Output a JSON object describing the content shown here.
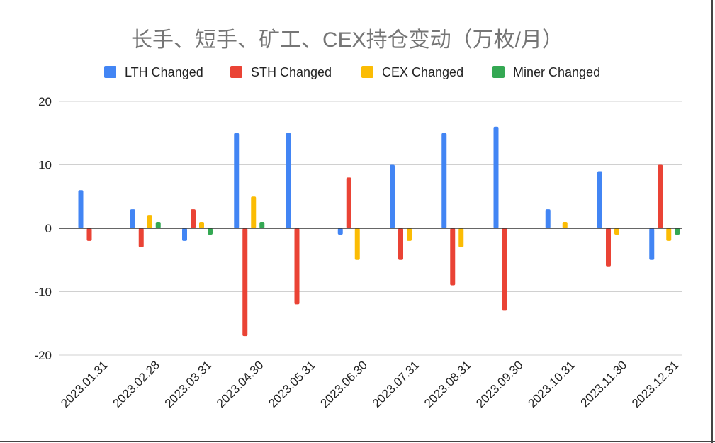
{
  "chart_data": {
    "type": "bar",
    "title": "长手、短手、矿工、CEX持仓变动（万枚/月）",
    "xlabel": "",
    "ylabel": "",
    "ylim": [
      -20,
      20
    ],
    "yticks": [
      20,
      10,
      0,
      -10,
      -20
    ],
    "grid": true,
    "legend_position": "top",
    "categories": [
      "2023.01.31",
      "2023.02.28",
      "2023.03.31",
      "2023.04.30",
      "2023.05.31",
      "2023.06.30",
      "2023.07.31",
      "2023.08.31",
      "2023.09.30",
      "2023.10.31",
      "2023.11.30",
      "2023.12.31"
    ],
    "series": [
      {
        "name": "LTH Changed",
        "color": "#4285F4",
        "values": [
          6,
          3,
          -2,
          15,
          15,
          -1,
          10,
          15,
          16,
          3,
          9,
          -5
        ]
      },
      {
        "name": "STH Changed",
        "color": "#EA4335",
        "values": [
          -2,
          -3,
          3,
          -17,
          -12,
          8,
          -5,
          -9,
          -13,
          0,
          -6,
          10
        ]
      },
      {
        "name": "CEX Changed",
        "color": "#FBBC04",
        "values": [
          0,
          2,
          1,
          5,
          0,
          -5,
          -2,
          -3,
          0,
          1,
          -1,
          -2
        ]
      },
      {
        "name": "Miner Changed",
        "color": "#34A853",
        "values": [
          0,
          1,
          -1,
          1,
          0,
          0,
          0,
          0,
          0,
          0,
          0,
          -1
        ]
      }
    ]
  }
}
